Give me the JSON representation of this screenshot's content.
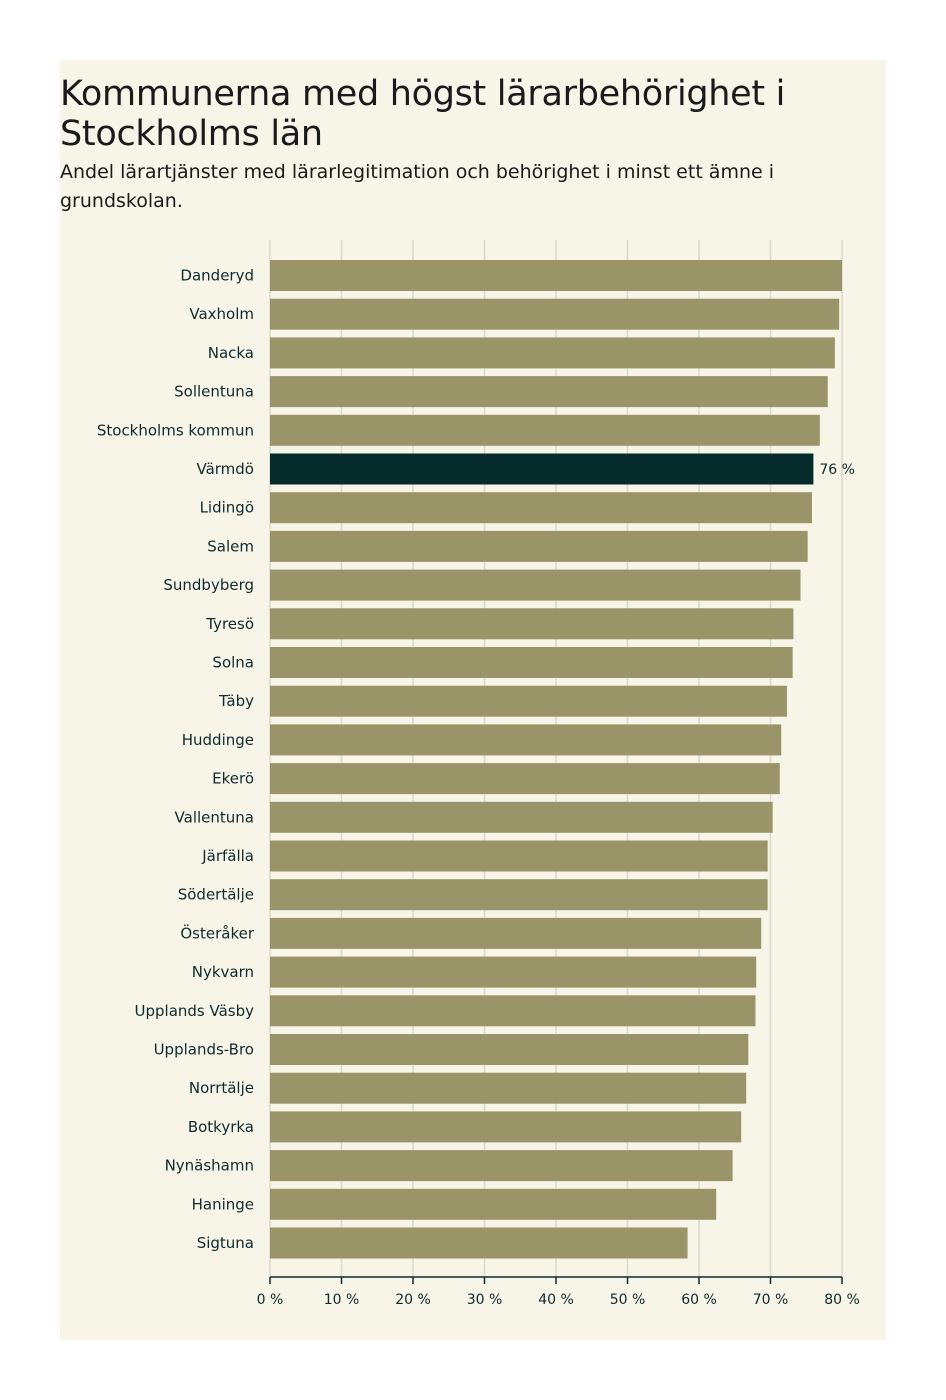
{
  "chart_data": {
    "type": "bar",
    "orientation": "horizontal",
    "title": "Kommunerna med högst lärarbehörighet i Stockholms län",
    "subtitle": "Andel lärartjänster med lärarlegitimation och behörighet i minst ett ämne i grundskolan.",
    "xlim": [
      0,
      80
    ],
    "xticks": [
      0,
      10,
      20,
      30,
      40,
      50,
      60,
      70,
      80
    ],
    "xtick_labels": [
      "0 %",
      "10 %",
      "20 %",
      "30 %",
      "40 %",
      "50 %",
      "60 %",
      "70 %",
      "80 %"
    ],
    "categories": [
      "Danderyd",
      "Vaxholm",
      "Nacka",
      "Sollentuna",
      "Stockholms kommun",
      "Värmdö",
      "Lidingö",
      "Salem",
      "Sundbyberg",
      "Tyresö",
      "Solna",
      "Täby",
      "Huddinge",
      "Ekerö",
      "Vallentuna",
      "Järfälla",
      "Södertälje",
      "Österåker",
      "Nykvarn",
      "Upplands Väsby",
      "Upplands-Bro",
      "Norrtälje",
      "Botkyrka",
      "Nynäshamn",
      "Haninge",
      "Sigtuna"
    ],
    "values": [
      80,
      79.6,
      79,
      78,
      76.9,
      76,
      75.8,
      75.2,
      74.2,
      73.2,
      73.1,
      72.3,
      71.5,
      71.3,
      70.3,
      69.6,
      69.6,
      68.7,
      68,
      67.9,
      66.9,
      66.6,
      65.9,
      64.7,
      62.4,
      58.4
    ],
    "highlight": {
      "category": "Värmdö",
      "label": "76 %"
    },
    "grid": true,
    "colors": {
      "bar": "#999569",
      "highlight": "#062b2b",
      "grid": "#dcd9d0",
      "axis": "#0e2b2b",
      "background": "#f7f4e8"
    }
  }
}
